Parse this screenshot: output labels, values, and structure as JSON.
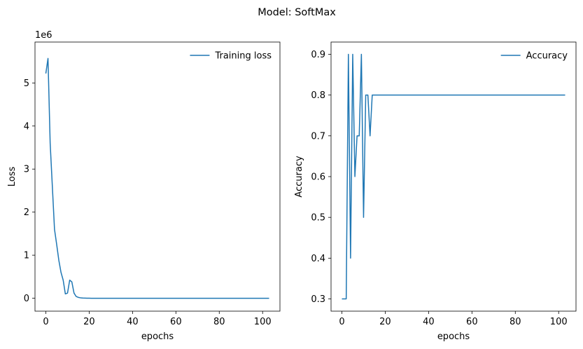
{
  "figure": {
    "title": "Model: SoftMax"
  },
  "chart_data": [
    {
      "type": "line",
      "title": "",
      "xlabel": "epochs",
      "ylabel": "Loss",
      "y_offset_label": "1e6",
      "xlim": [
        -5,
        108
      ],
      "ylim": [
        -0.3,
        5.95
      ],
      "xticks": [
        0,
        20,
        40,
        60,
        80,
        100
      ],
      "yticks": [
        0,
        1,
        2,
        3,
        4,
        5
      ],
      "grid": false,
      "legend": "top-right",
      "color": "#1f77b4",
      "series": [
        {
          "name": "Training loss",
          "x": [
            0,
            1,
            2,
            3,
            4,
            5,
            6,
            7,
            8,
            9,
            10,
            11,
            12,
            13,
            14,
            15,
            16,
            17,
            18,
            19,
            20,
            21,
            22,
            23,
            24,
            25,
            26,
            27,
            28,
            29,
            30,
            31,
            32,
            33,
            34,
            35,
            36,
            37,
            38,
            39,
            40,
            41,
            42,
            43,
            44,
            45,
            46,
            47,
            48,
            49,
            50,
            51,
            52,
            53,
            54,
            55,
            56,
            57,
            58,
            59,
            60,
            61,
            62,
            63,
            64,
            65,
            66,
            67,
            68,
            69,
            70,
            71,
            72,
            73,
            74,
            75,
            76,
            77,
            78,
            79,
            80,
            81,
            82,
            83,
            84,
            85,
            86,
            87,
            88,
            89,
            90,
            91,
            92,
            93,
            94,
            95,
            96,
            97,
            98,
            99,
            100,
            101,
            102,
            103
          ],
          "y": [
            5.22,
            5.57,
            3.6,
            2.6,
            1.6,
            1.25,
            0.88,
            0.6,
            0.42,
            0.1,
            0.12,
            0.42,
            0.38,
            0.12,
            0.04,
            0.02,
            0.01,
            0.005,
            0.003,
            0.002,
            0.001,
            0,
            0,
            0,
            0,
            0,
            0,
            0,
            0,
            0,
            0,
            0,
            0,
            0,
            0,
            0,
            0,
            0,
            0,
            0,
            0,
            0,
            0,
            0,
            0,
            0,
            0,
            0,
            0,
            0,
            0,
            0,
            0,
            0,
            0,
            0,
            0,
            0,
            0,
            0,
            0,
            0,
            0,
            0,
            0,
            0,
            0,
            0,
            0,
            0,
            0,
            0,
            0,
            0,
            0,
            0,
            0,
            0,
            0,
            0,
            0,
            0,
            0,
            0,
            0,
            0,
            0,
            0,
            0,
            0,
            0,
            0,
            0,
            0,
            0,
            0,
            0,
            0,
            0,
            0,
            0,
            0,
            0,
            0
          ]
        }
      ]
    },
    {
      "type": "line",
      "title": "",
      "xlabel": "epochs",
      "ylabel": "Accuracy",
      "xlim": [
        -5,
        108
      ],
      "ylim": [
        0.27,
        0.93
      ],
      "xticks": [
        0,
        20,
        40,
        60,
        80,
        100
      ],
      "yticks": [
        0.3,
        0.4,
        0.5,
        0.6,
        0.7,
        0.8,
        0.9
      ],
      "ytick_labels": [
        "0.3",
        "0.4",
        "0.5",
        "0.6",
        "0.7",
        "0.8",
        "0.9"
      ],
      "grid": false,
      "legend": "top-right",
      "color": "#1f77b4",
      "series": [
        {
          "name": "Accuracy",
          "x": [
            0,
            1,
            2,
            3,
            4,
            5,
            6,
            7,
            8,
            9,
            10,
            11,
            12,
            13,
            14,
            15,
            16,
            17,
            18,
            19,
            20,
            21,
            22,
            23,
            24,
            25,
            26,
            27,
            28,
            29,
            30,
            31,
            32,
            33,
            34,
            35,
            36,
            37,
            38,
            39,
            40,
            41,
            42,
            43,
            44,
            45,
            46,
            47,
            48,
            49,
            50,
            51,
            52,
            53,
            54,
            55,
            56,
            57,
            58,
            59,
            60,
            61,
            62,
            63,
            64,
            65,
            66,
            67,
            68,
            69,
            70,
            71,
            72,
            73,
            74,
            75,
            76,
            77,
            78,
            79,
            80,
            81,
            82,
            83,
            84,
            85,
            86,
            87,
            88,
            89,
            90,
            91,
            92,
            93,
            94,
            95,
            96,
            97,
            98,
            99,
            100,
            101,
            102,
            103
          ],
          "y": [
            0.3,
            0.3,
            0.3,
            0.9,
            0.4,
            0.9,
            0.6,
            0.7,
            0.7,
            0.9,
            0.5,
            0.8,
            0.8,
            0.7,
            0.8,
            0.8,
            0.8,
            0.8,
            0.8,
            0.8,
            0.8,
            0.8,
            0.8,
            0.8,
            0.8,
            0.8,
            0.8,
            0.8,
            0.8,
            0.8,
            0.8,
            0.8,
            0.8,
            0.8,
            0.8,
            0.8,
            0.8,
            0.8,
            0.8,
            0.8,
            0.8,
            0.8,
            0.8,
            0.8,
            0.8,
            0.8,
            0.8,
            0.8,
            0.8,
            0.8,
            0.8,
            0.8,
            0.8,
            0.8,
            0.8,
            0.8,
            0.8,
            0.8,
            0.8,
            0.8,
            0.8,
            0.8,
            0.8,
            0.8,
            0.8,
            0.8,
            0.8,
            0.8,
            0.8,
            0.8,
            0.8,
            0.8,
            0.8,
            0.8,
            0.8,
            0.8,
            0.8,
            0.8,
            0.8,
            0.8,
            0.8,
            0.8,
            0.8,
            0.8,
            0.8,
            0.8,
            0.8,
            0.8,
            0.8,
            0.8,
            0.8,
            0.8,
            0.8,
            0.8,
            0.8,
            0.8,
            0.8,
            0.8,
            0.8,
            0.8,
            0.8,
            0.8,
            0.8,
            0.8
          ]
        }
      ]
    }
  ]
}
